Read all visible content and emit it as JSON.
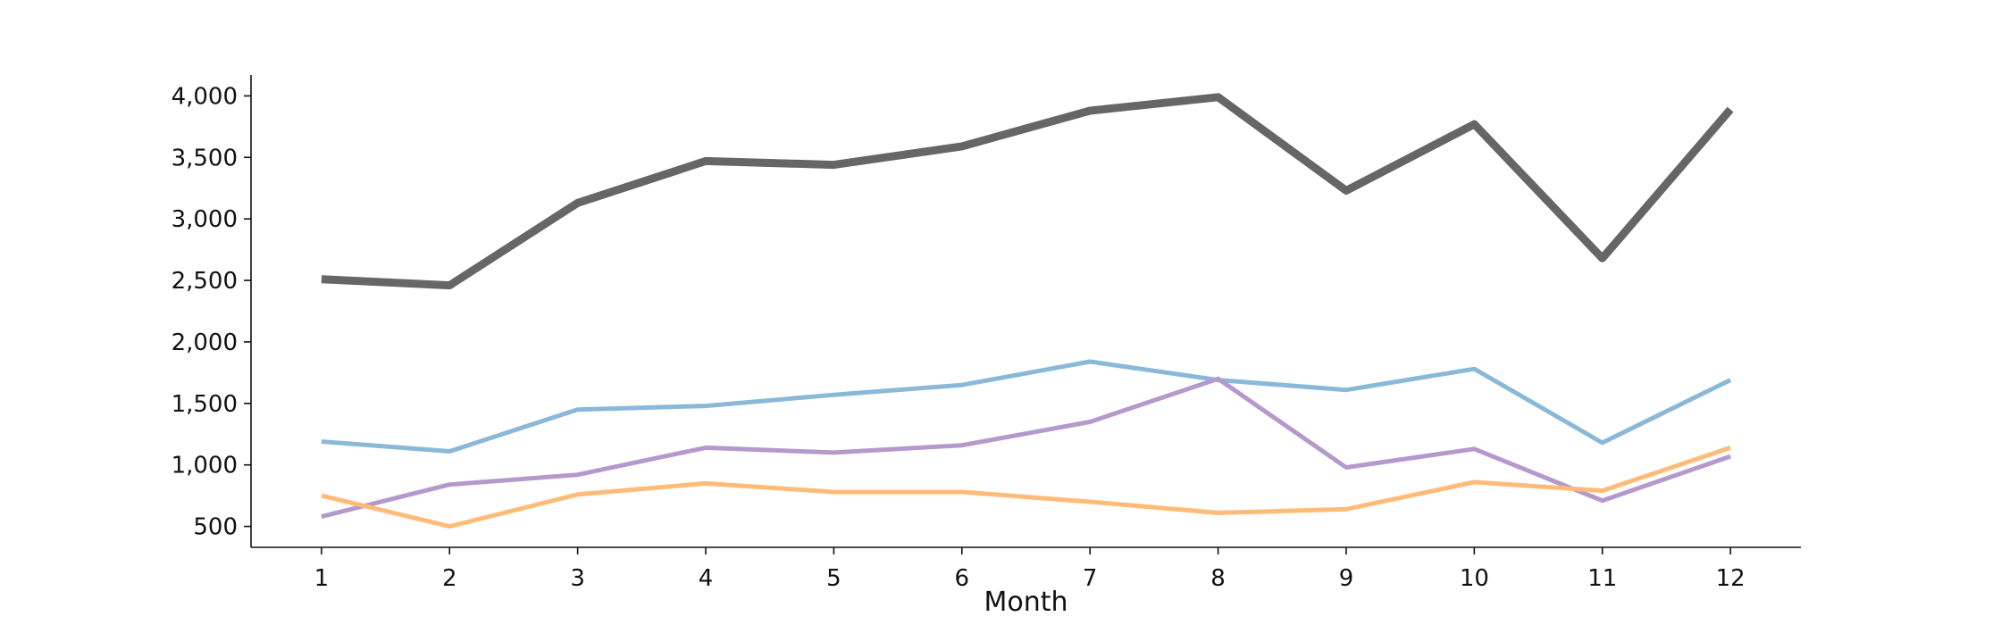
{
  "chart_data": {
    "type": "line",
    "title": "",
    "xlabel": "Month",
    "ylabel": "",
    "x": [
      1,
      2,
      3,
      4,
      5,
      6,
      7,
      8,
      9,
      10,
      11,
      12
    ],
    "x_tick_labels": [
      "1",
      "2",
      "3",
      "4",
      "5",
      "6",
      "7",
      "8",
      "9",
      "10",
      "11",
      "12"
    ],
    "y_ticks": [
      500,
      1000,
      1500,
      2000,
      2500,
      3000,
      3500,
      4000
    ],
    "y_tick_labels": [
      "500",
      "1,000",
      "1,500",
      "2,000",
      "2,500",
      "3,000",
      "3,500",
      "4,000"
    ],
    "ylim": [
      330,
      4170
    ],
    "xlim": [
      0.45,
      12.55
    ],
    "grid": false,
    "legend": "none",
    "series": [
      {
        "color": "#666666",
        "values": [
          2510,
          2460,
          3130,
          3470,
          3440,
          3590,
          3880,
          3990,
          3230,
          3770,
          2680,
          3890
        ]
      },
      {
        "color": "#8ab8d9",
        "values": [
          1190,
          1110,
          1450,
          1480,
          1570,
          1650,
          1840,
          1690,
          1610,
          1780,
          1180,
          1690
        ]
      },
      {
        "color": "#b499cc",
        "values": [
          580,
          840,
          920,
          1140,
          1100,
          1160,
          1350,
          1700,
          980,
          1130,
          710,
          1070
        ]
      },
      {
        "color": "#ffbb77",
        "values": [
          750,
          500,
          760,
          850,
          780,
          780,
          700,
          610,
          640,
          860,
          790,
          1140
        ]
      }
    ]
  }
}
